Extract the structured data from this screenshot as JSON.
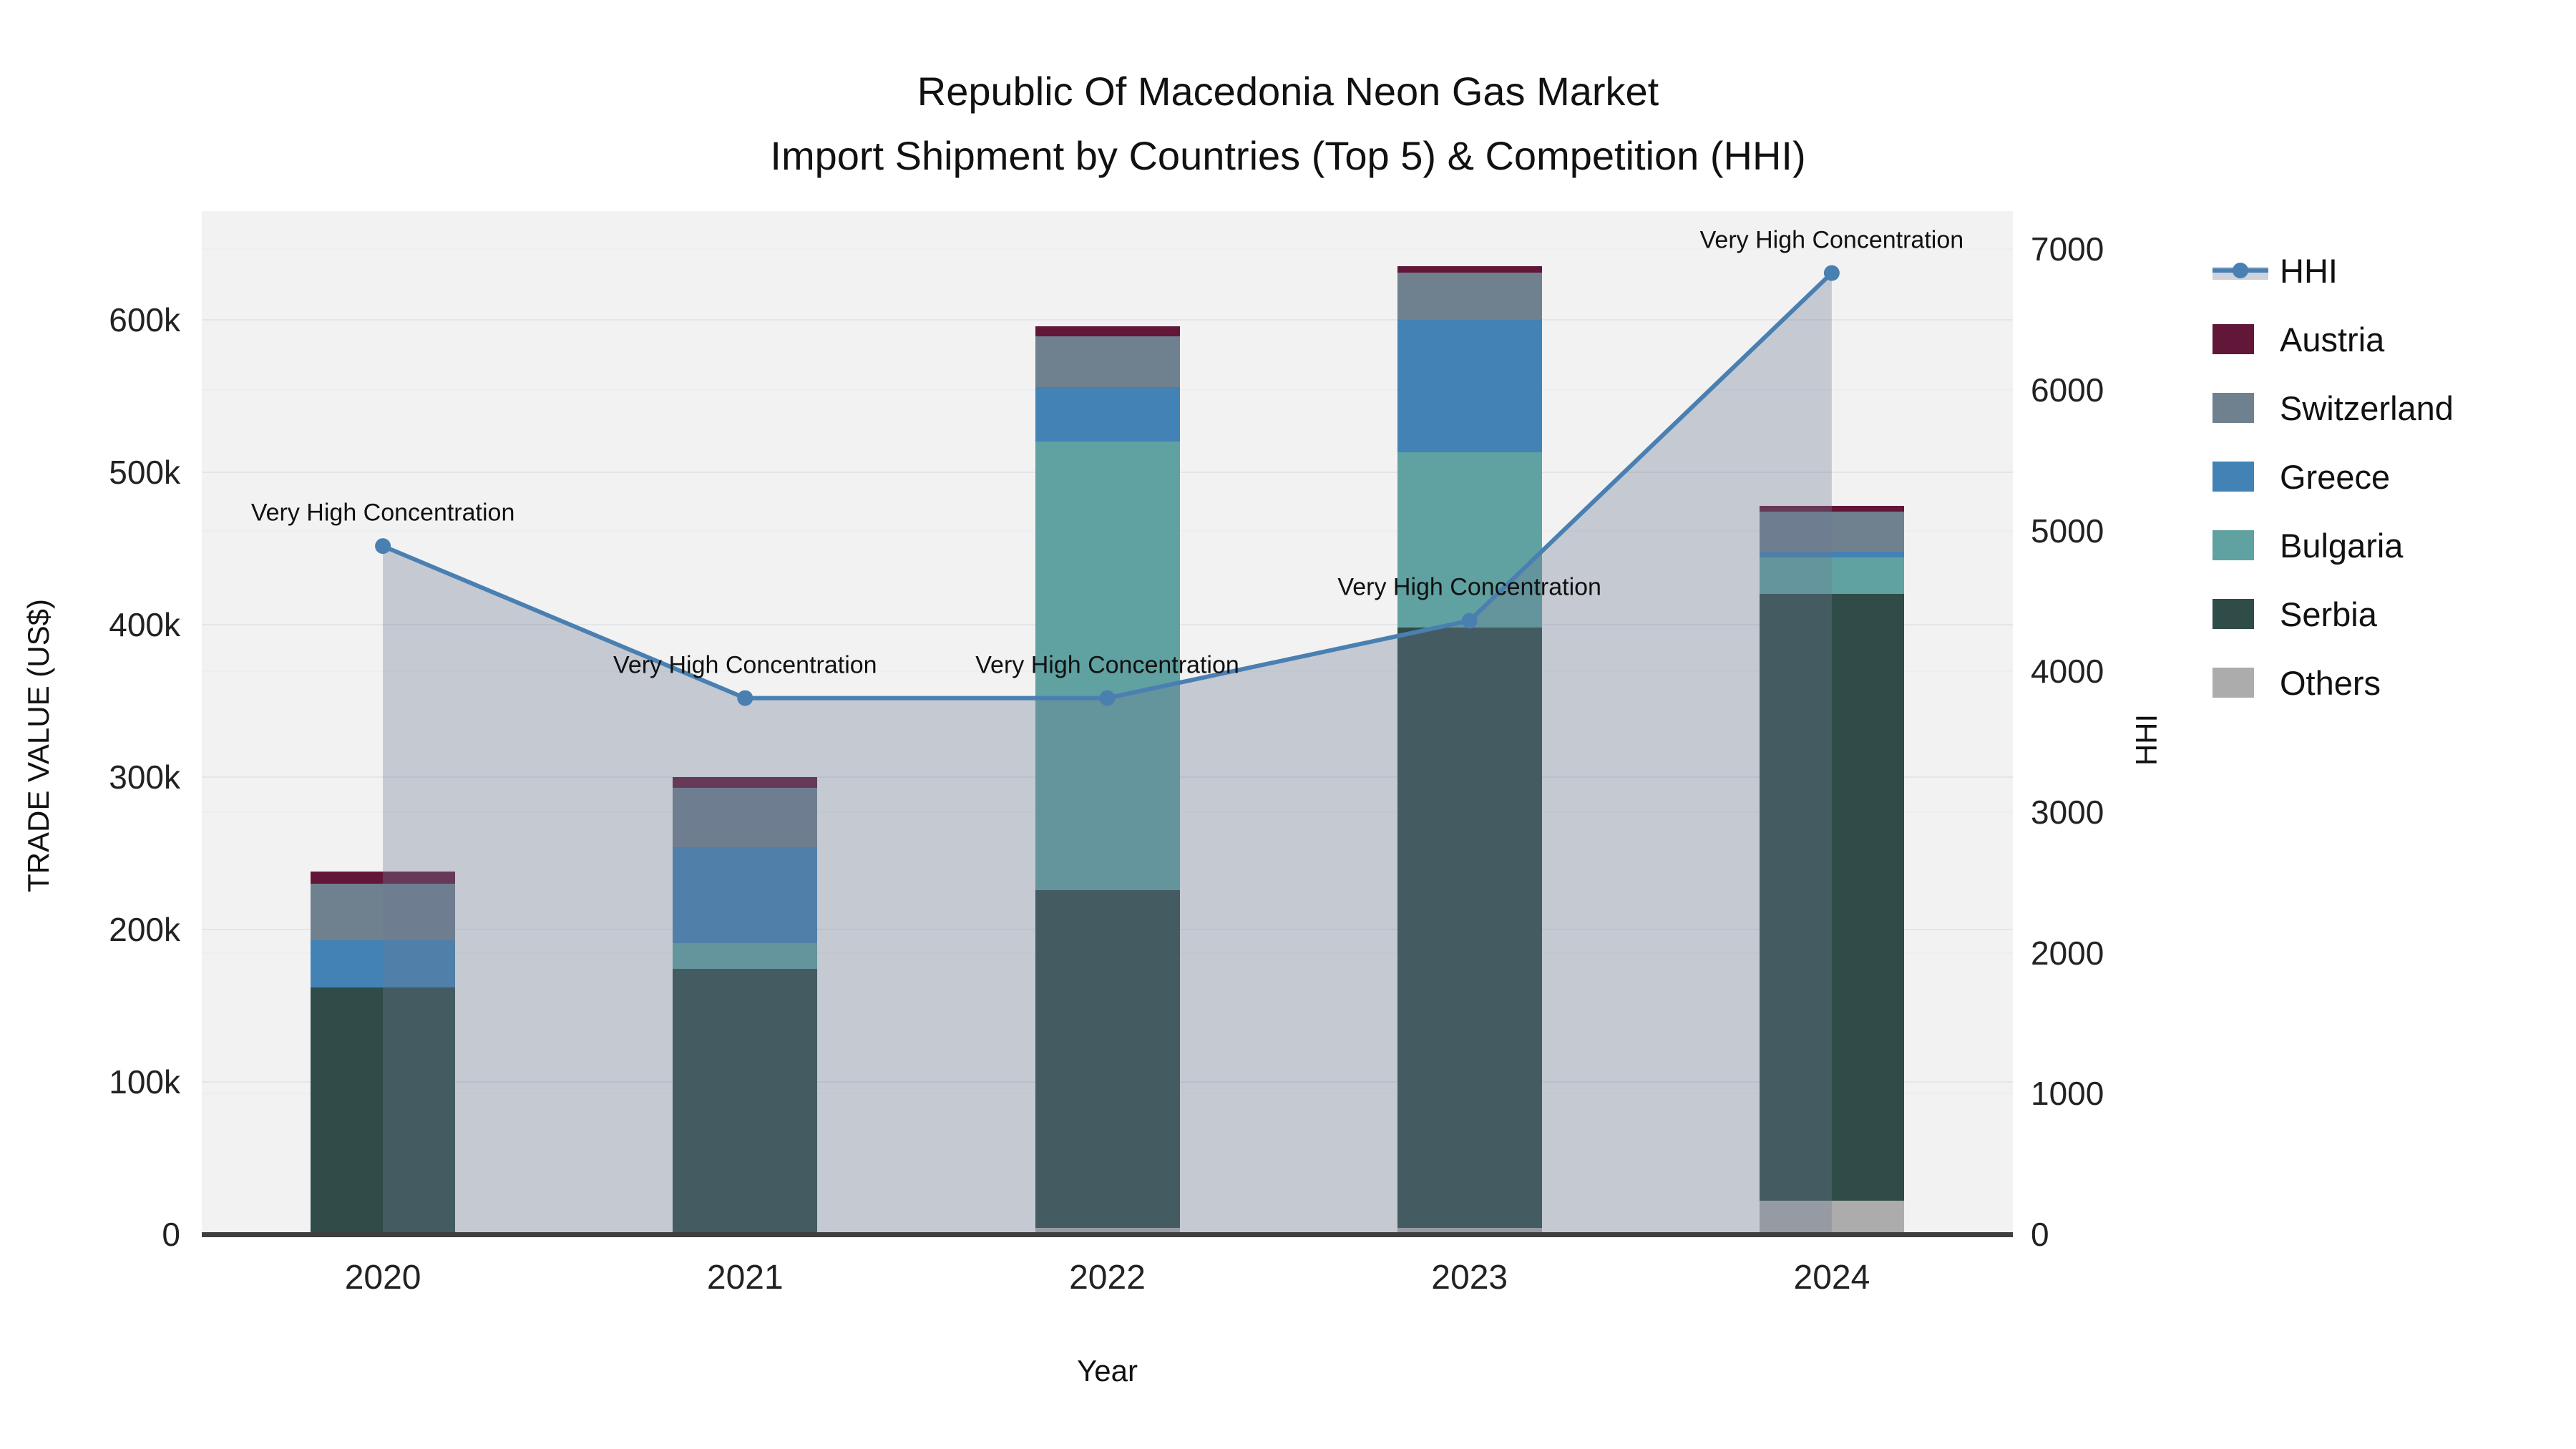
{
  "title_line1": "Republic Of Macedonia Neon Gas Market",
  "title_line2": "Import Shipment by Countries (Top 5) & Competition (HHI)",
  "axes": {
    "x_title": "Year",
    "y_left_title": "TRADE VALUE (US$)",
    "y_right_title": "HHI",
    "y_left_ticks": [
      {
        "value": 0,
        "label": "0"
      },
      {
        "value": 100000,
        "label": "100k"
      },
      {
        "value": 200000,
        "label": "200k"
      },
      {
        "value": 300000,
        "label": "300k"
      },
      {
        "value": 400000,
        "label": "400k"
      },
      {
        "value": 500000,
        "label": "500k"
      },
      {
        "value": 600000,
        "label": "600k"
      }
    ],
    "y_right_ticks": [
      {
        "value": 0,
        "label": "0"
      },
      {
        "value": 1000,
        "label": "1000"
      },
      {
        "value": 2000,
        "label": "2000"
      },
      {
        "value": 3000,
        "label": "3000"
      },
      {
        "value": 4000,
        "label": "4000"
      },
      {
        "value": 5000,
        "label": "5000"
      },
      {
        "value": 6000,
        "label": "6000"
      },
      {
        "value": 7000,
        "label": "7000"
      }
    ]
  },
  "chart_data": {
    "type": "bar+line",
    "categories": [
      "2020",
      "2021",
      "2022",
      "2023",
      "2024"
    ],
    "stack_series": [
      {
        "name": "Others",
        "color": "#ACACAC",
        "values": [
          0,
          1000,
          4000,
          4000,
          22000
        ]
      },
      {
        "name": "Serbia",
        "color": "#2F4C48",
        "values": [
          162000,
          173000,
          222000,
          394000,
          398000
        ]
      },
      {
        "name": "Bulgaria",
        "color": "#60A1A1",
        "values": [
          0,
          17000,
          294000,
          115000,
          24000
        ]
      },
      {
        "name": "Greece",
        "color": "#4282B5",
        "values": [
          31000,
          63000,
          36000,
          87000,
          4000
        ]
      },
      {
        "name": "Switzerland",
        "color": "#6F808F",
        "values": [
          37000,
          39000,
          33000,
          31000,
          26000
        ]
      },
      {
        "name": "Austria",
        "color": "#621739",
        "values": [
          8000,
          7000,
          7000,
          4000,
          4000
        ]
      }
    ],
    "bar_totals": [
      238000,
      300000,
      596000,
      635000,
      478000
    ],
    "line_series": {
      "name": "HHI",
      "color": "#4A80B1",
      "area_fill": "rgba(108,122,148,0.34)",
      "values": [
        4890,
        3810,
        3810,
        4360,
        6830
      ]
    },
    "annotation_label": "Very High Concentration",
    "title": "Republic Of Macedonia Neon Gas Market Import Shipment by Countries (Top 5) & Competition (HHI)",
    "xlabel": "Year",
    "ylabel": "TRADE VALUE (US$)",
    "ylabel_right": "HHI",
    "ylim_left": [
      0,
      671000
    ],
    "ylim_right": [
      0,
      7270
    ],
    "grid": true,
    "legend_position": "right"
  },
  "legend": {
    "items": [
      {
        "label": "HHI",
        "type": "line"
      },
      {
        "label": "Austria",
        "type": "square",
        "color": "#621739"
      },
      {
        "label": "Switzerland",
        "type": "square",
        "color": "#6F808F"
      },
      {
        "label": "Greece",
        "type": "square",
        "color": "#4282B5"
      },
      {
        "label": "Bulgaria",
        "type": "square",
        "color": "#60A1A1"
      },
      {
        "label": "Serbia",
        "type": "square",
        "color": "#2F4C48"
      },
      {
        "label": "Others",
        "type": "square",
        "color": "#ACACAC"
      }
    ]
  }
}
